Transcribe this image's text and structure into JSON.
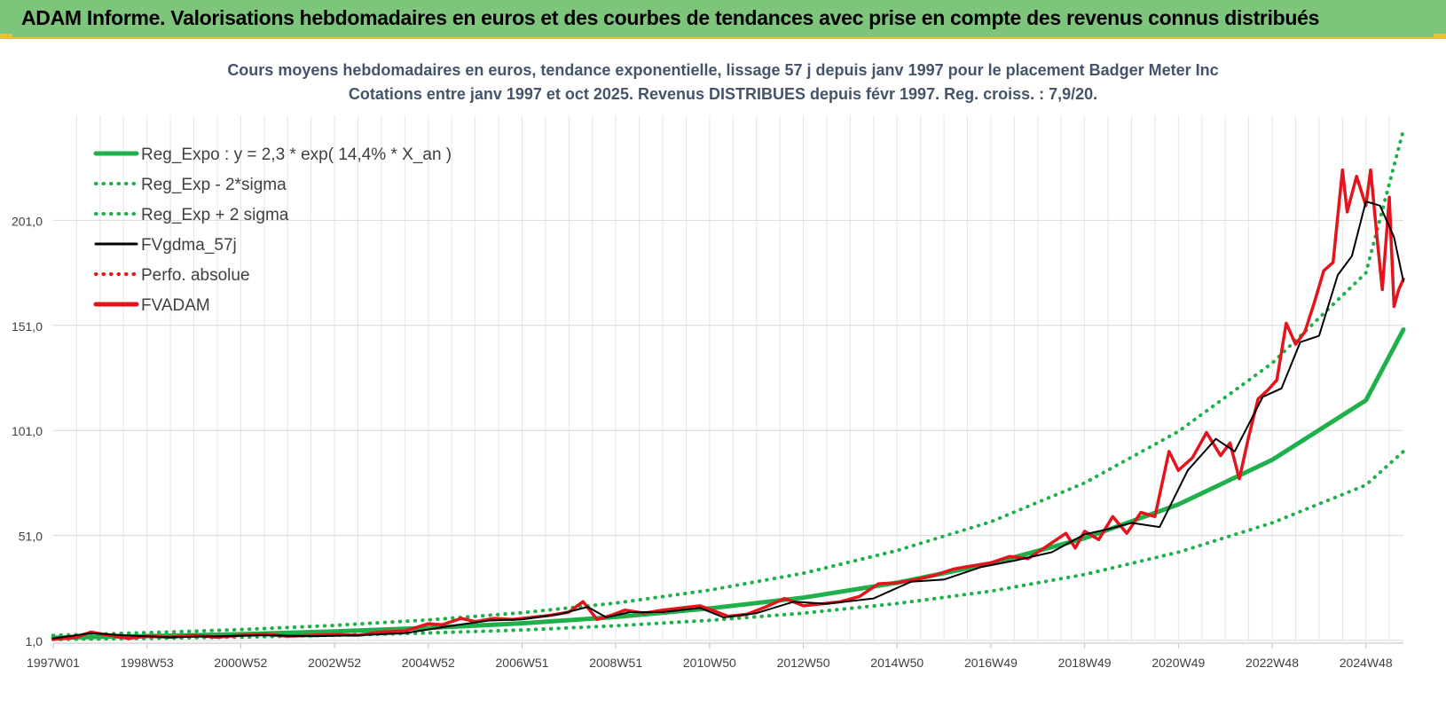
{
  "page_title": "ADAM Informe. Valorisations hebdomadaires en euros et des courbes de tendances avec prise en compte des revenus connus distribués",
  "chart_data": {
    "type": "line",
    "title": "Cours moyens hebdomadaires en euros, tendance exponentielle, lissage 57 j depuis janv 1997 pour le placement Badger Meter Inc",
    "subtitle": "Cotations entre janv 1997 et oct 2025. Revenus DISTRIBUES depuis févr 1997. Reg. croiss. : 7,9/20.",
    "ylim": [
      1.0,
      251.0
    ],
    "xlim": [
      1997.0,
      2025.8
    ],
    "y_ticks": [
      "1,0",
      "51,0",
      "101,0",
      "151,0",
      "201,0"
    ],
    "y_tick_values": [
      1,
      51,
      101,
      151,
      201
    ],
    "x_ticks": [
      "1997W01",
      "1998W53",
      "2000W52",
      "2002W52",
      "2004W52",
      "2006W51",
      "2008W51",
      "2010W50",
      "2012W50",
      "2014W50",
      "2016W49",
      "2018W49",
      "2020W49",
      "2022W48",
      "2024W48"
    ],
    "x_tick_values": [
      1997.0,
      1999.0,
      2001.0,
      2003.0,
      2005.0,
      2007.0,
      2009.0,
      2011.0,
      2013.0,
      2015.0,
      2017.0,
      2019.0,
      2021.0,
      2023.0,
      2025.0
    ],
    "grid": true,
    "legend_position": "top-left",
    "series": [
      {
        "name": "Reg_Expo : y = 2,3 * exp( 14,4% *  X_an )",
        "color": "#1fb04c",
        "style": "solid",
        "x": [
          1997.0,
          1999.0,
          2001.0,
          2003.0,
          2005.0,
          2007.0,
          2009.0,
          2011.0,
          2013.0,
          2015.0,
          2017.0,
          2019.0,
          2021.0,
          2023.0,
          2025.0,
          2025.8
        ],
        "y": [
          2.3,
          3.1,
          4.0,
          5.3,
          7.0,
          9.2,
          12.2,
          16.3,
          21.4,
          28.5,
          37.6,
          49.7,
          65.8,
          87.0,
          115.3,
          149.0
        ]
      },
      {
        "name": "Reg_Exp - 2*sigma",
        "color": "#1fb04c",
        "style": "dotted",
        "x": [
          1997.0,
          1999.0,
          2001.0,
          2003.0,
          2005.0,
          2007.0,
          2009.0,
          2011.0,
          2013.0,
          2015.0,
          2017.0,
          2019.0,
          2021.0,
          2023.0,
          2025.0,
          2025.8
        ],
        "y": [
          1.5,
          2.0,
          2.6,
          3.5,
          4.6,
          6.0,
          8.0,
          10.6,
          14.0,
          18.6,
          24.5,
          32.4,
          43.0,
          57.0,
          75.0,
          91.0
        ]
      },
      {
        "name": "Reg_Exp + 2 sigma",
        "color": "#1fb04c",
        "style": "dotted",
        "x": [
          1997.0,
          1999.0,
          2001.0,
          2003.0,
          2005.0,
          2007.0,
          2009.0,
          2011.0,
          2013.0,
          2015.0,
          2017.0,
          2019.0,
          2021.0,
          2023.0,
          2025.0,
          2025.8
        ],
        "y": [
          3.4,
          4.7,
          6.2,
          8.2,
          10.8,
          14.2,
          18.8,
          25.0,
          33.0,
          43.8,
          57.5,
          76.0,
          100.5,
          133.0,
          176.0,
          244.0
        ]
      },
      {
        "name": "FVgdma_57j",
        "color": "#000000",
        "style": "solid",
        "x": [
          1997.0,
          1997.8,
          1998.5,
          1999.5,
          2000.5,
          2001.5,
          2002.5,
          2003.5,
          2004.5,
          2005.5,
          2006.3,
          2007.0,
          2007.8,
          2008.4,
          2008.8,
          2009.3,
          2010.0,
          2010.8,
          2011.3,
          2012.0,
          2012.8,
          2013.5,
          2014.5,
          2015.3,
          2016.0,
          2016.8,
          2017.5,
          2018.3,
          2019.0,
          2019.5,
          2020.0,
          2020.6,
          2021.2,
          2021.8,
          2022.2,
          2022.8,
          2023.2,
          2023.6,
          2024.0,
          2024.4,
          2024.7,
          2025.0,
          2025.3,
          2025.6,
          2025.8
        ],
        "y": [
          2.0,
          4.5,
          3.5,
          2.5,
          3.0,
          3.5,
          3.0,
          3.5,
          4.5,
          8.0,
          10.5,
          11.0,
          13.5,
          17.0,
          12.0,
          14.5,
          14.5,
          16.5,
          12.0,
          14.0,
          19.5,
          18.5,
          21.0,
          29.0,
          30.0,
          36.0,
          39.0,
          43.0,
          51.5,
          54.0,
          57.0,
          55.0,
          82.0,
          97.0,
          91.0,
          117.0,
          121.0,
          143.0,
          146.0,
          175.0,
          184.0,
          210.0,
          208.0,
          193.0,
          172.0
        ]
      },
      {
        "name": "Perfo. absolue",
        "color": "#e3141c",
        "style": "dotted",
        "x": [],
        "y": []
      },
      {
        "name": "FVADAM",
        "color": "#e3141c",
        "style": "solid",
        "x": [
          1997.0,
          1997.5,
          1997.8,
          1998.2,
          1998.6,
          1999.0,
          1999.5,
          2000.0,
          2000.5,
          2001.0,
          2001.5,
          2002.0,
          2002.5,
          2003.0,
          2003.5,
          2004.0,
          2004.5,
          2005.0,
          2005.3,
          2005.7,
          2006.0,
          2006.4,
          2006.8,
          2007.2,
          2007.6,
          2008.0,
          2008.3,
          2008.6,
          2008.9,
          2009.2,
          2009.6,
          2010.0,
          2010.4,
          2010.8,
          2011.1,
          2011.4,
          2011.8,
          2012.2,
          2012.6,
          2013.0,
          2013.4,
          2013.8,
          2014.2,
          2014.6,
          2015.0,
          2015.4,
          2015.8,
          2016.2,
          2016.6,
          2017.0,
          2017.4,
          2017.8,
          2018.2,
          2018.6,
          2018.8,
          2019.0,
          2019.3,
          2019.6,
          2019.9,
          2020.2,
          2020.5,
          2020.8,
          2021.0,
          2021.3,
          2021.6,
          2021.9,
          2022.1,
          2022.3,
          2022.5,
          2022.7,
          2022.9,
          2023.1,
          2023.3,
          2023.5,
          2023.7,
          2023.9,
          2024.1,
          2024.3,
          2024.5,
          2024.6,
          2024.8,
          2025.0,
          2025.1,
          2025.25,
          2025.35,
          2025.5,
          2025.6,
          2025.7,
          2025.8
        ],
        "y": [
          1.5,
          2.5,
          5.0,
          3.5,
          2.0,
          3.0,
          2.5,
          3.5,
          2.5,
          3.5,
          4.0,
          3.0,
          3.5,
          3.8,
          3.5,
          5.0,
          5.5,
          9.0,
          8.5,
          11.5,
          10.0,
          11.5,
          11.0,
          12.0,
          13.0,
          14.5,
          19.5,
          11.0,
          13.0,
          15.5,
          14.0,
          15.5,
          16.5,
          17.5,
          15.0,
          12.5,
          13.5,
          17.0,
          21.0,
          17.5,
          18.5,
          19.5,
          22.0,
          28.0,
          28.5,
          30.0,
          32.0,
          35.0,
          36.5,
          38.0,
          41.0,
          40.0,
          46.0,
          52.0,
          45.0,
          53.0,
          49.0,
          60.0,
          52.0,
          62.0,
          60.0,
          91.0,
          82.0,
          88.0,
          100.0,
          89.0,
          95.0,
          78.0,
          98.0,
          116.0,
          120.0,
          125.0,
          152.0,
          142.0,
          148.0,
          162.0,
          177.0,
          181.0,
          225.0,
          205.0,
          222.0,
          208.0,
          225.0,
          190.0,
          168.0,
          212.0,
          160.0,
          168.0,
          173.0
        ]
      }
    ]
  }
}
